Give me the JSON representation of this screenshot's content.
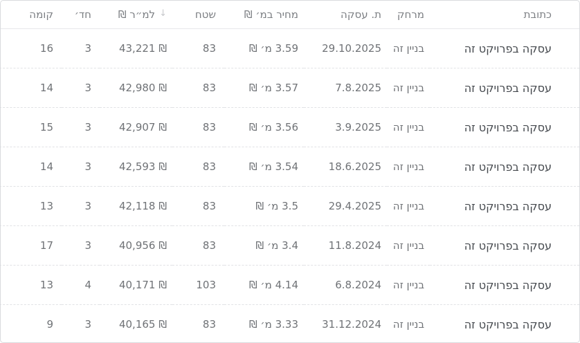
{
  "table": {
    "sort_icon": "↓",
    "sorted_column": "price-per-sqm",
    "sort_direction": "desc",
    "columns": [
      {
        "key": "address",
        "label": "כתובת"
      },
      {
        "key": "distance",
        "label": "מרחק"
      },
      {
        "key": "deal-date",
        "label": "ת. עסקה"
      },
      {
        "key": "price",
        "label": "מחיר במ׳ ₪"
      },
      {
        "key": "area",
        "label": "שטח"
      },
      {
        "key": "price-per-sqm",
        "label": "למ״ר ₪"
      },
      {
        "key": "rooms",
        "label": "חד׳"
      },
      {
        "key": "floor",
        "label": "קומה"
      }
    ],
    "rows": [
      [
        "עסקה בפרויקט זה",
        "בניין זה",
        "29.10.2025",
        "3.59 מ׳ ₪",
        "83",
        "₪ 43,221",
        "3",
        "16"
      ],
      [
        "עסקה בפרויקט זה",
        "בניין זה",
        "7.8.2025",
        "3.57 מ׳ ₪",
        "83",
        "₪ 42,980",
        "3",
        "14"
      ],
      [
        "עסקה בפרויקט זה",
        "בניין זה",
        "3.9.2025",
        "3.56 מ׳ ₪",
        "83",
        "₪ 42,907",
        "3",
        "15"
      ],
      [
        "עסקה בפרויקט זה",
        "בניין זה",
        "18.6.2025",
        "3.54 מ׳ ₪",
        "83",
        "₪ 42,593",
        "3",
        "14"
      ],
      [
        "עסקה בפרויקט זה",
        "בניין זה",
        "29.4.2025",
        "3.5 מ׳ ₪",
        "83",
        "₪ 42,118",
        "3",
        "13"
      ],
      [
        "עסקה בפרויקט זה",
        "בניין זה",
        "11.8.2024",
        "3.4 מ׳ ₪",
        "83",
        "₪ 40,956",
        "3",
        "17"
      ],
      [
        "עסקה בפרויקט זה",
        "בניין זה",
        "6.8.2024",
        "4.14 מ׳ ₪",
        "103",
        "₪ 40,171",
        "4",
        "13"
      ],
      [
        "עסקה בפרויקט זה",
        "בניין זה",
        "31.12.2024",
        "3.33 מ׳ ₪",
        "83",
        "₪ 40,165",
        "3",
        "9"
      ]
    ]
  },
  "colors": {
    "header_text": "#7b7e82",
    "cell_text": "#6f7276",
    "address_text": "#43474c",
    "table_border": "#d9dbde",
    "header_divider": "#e7e8ea",
    "row_divider": "#e1e2e5",
    "sort_icon": "#c7c9cc"
  }
}
